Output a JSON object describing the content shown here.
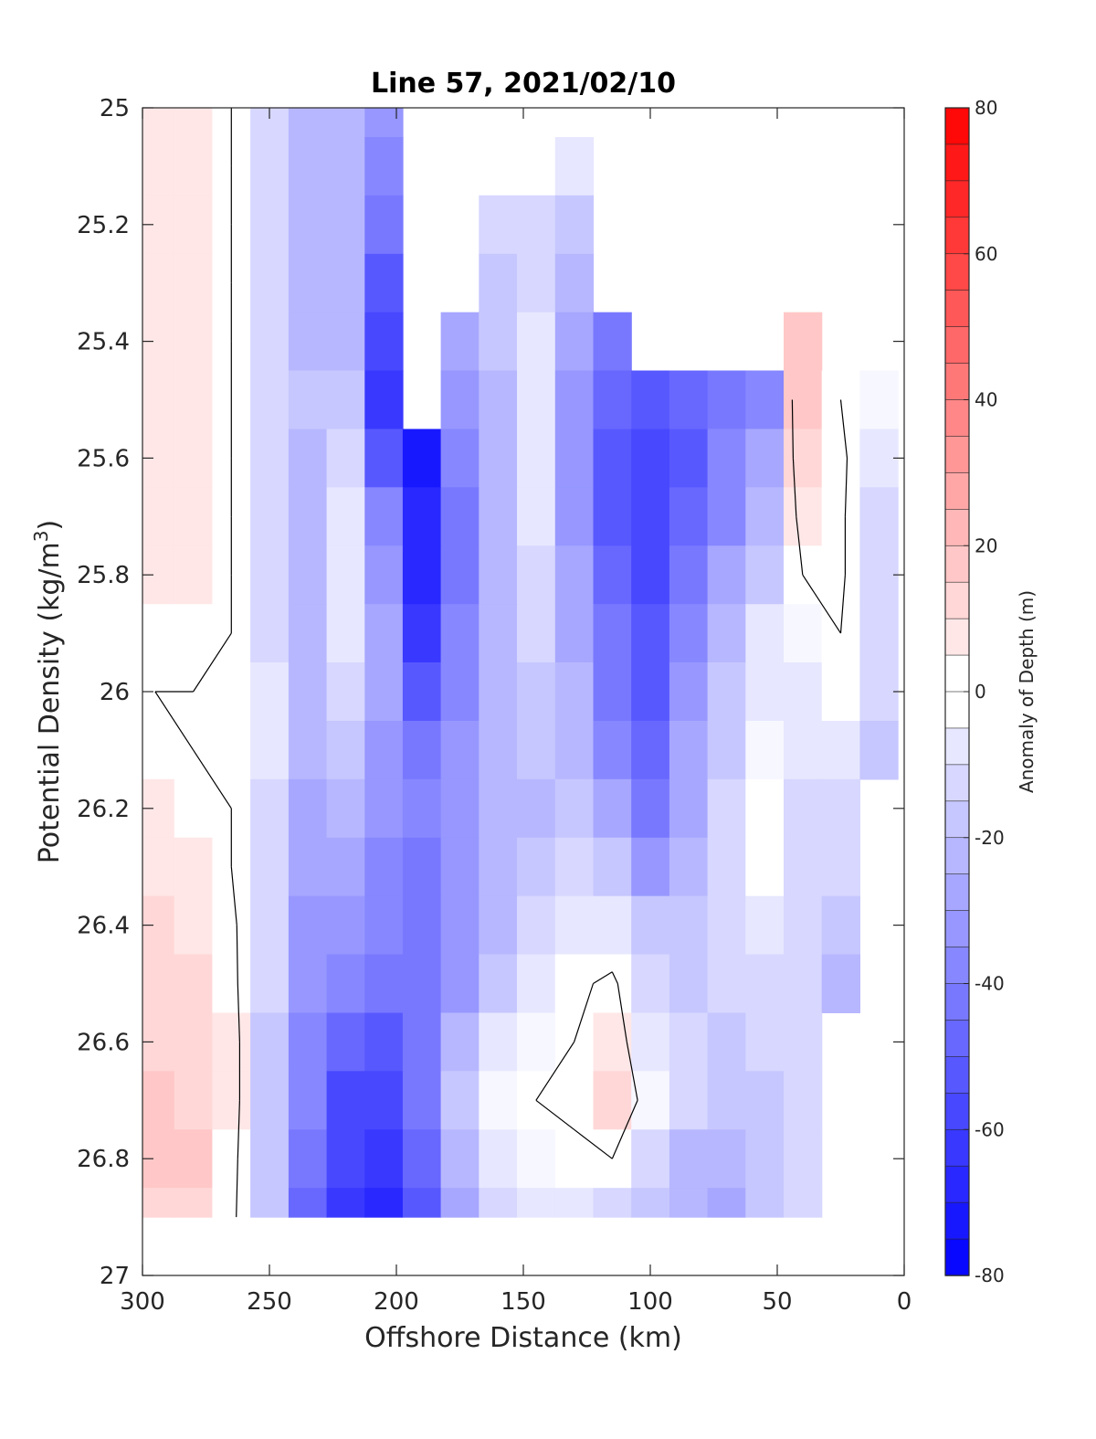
{
  "chart_data": {
    "type": "heatmap",
    "subtype": "filled-contour",
    "title": "Line 57, 2021/02/10",
    "xlabel": "Offshore Distance (km)",
    "ylabel_main": "Potential Density (kg/m",
    "ylabel_sup": "3",
    "ylabel_close": ")",
    "xlim": [
      300,
      0
    ],
    "x_reversed": true,
    "ylim": [
      25,
      27
    ],
    "y_reversed": true,
    "x_ticks": [
      "300",
      "250",
      "200",
      "150",
      "100",
      "50",
      "0"
    ],
    "x_tick_values": [
      300,
      250,
      200,
      150,
      100,
      50,
      0
    ],
    "y_ticks": [
      "25",
      "25.2",
      "25.4",
      "25.6",
      "25.8",
      "26",
      "26.2",
      "26.4",
      "26.6",
      "26.8",
      "27"
    ],
    "y_tick_values": [
      25,
      25.2,
      25.4,
      25.6,
      25.8,
      26,
      26.2,
      26.4,
      26.6,
      26.8,
      27
    ],
    "grid": false,
    "colorbar": {
      "label": "Anomaly of Depth (m)",
      "range": [
        -80,
        80
      ],
      "step": 5,
      "ticks": [
        "80",
        "60",
        "40",
        "20",
        "0",
        "-20",
        "-40",
        "-60",
        "-80"
      ],
      "tick_values": [
        80,
        60,
        40,
        20,
        0,
        -20,
        -40,
        -60,
        -80
      ],
      "colormap": "blue-white-red",
      "color_low": "#0000ff",
      "color_mid": "#ffffff",
      "color_high": "#ff0000"
    },
    "zero_contour": "black",
    "x": [
      295,
      280,
      265,
      250,
      235,
      220,
      205,
      190,
      175,
      160,
      145,
      130,
      115,
      100,
      85,
      70,
      55,
      40,
      25,
      10
    ],
    "y": [
      25.0,
      25.1,
      25.2,
      25.3,
      25.4,
      25.5,
      25.6,
      25.7,
      25.8,
      25.9,
      26.0,
      26.1,
      26.2,
      26.3,
      26.4,
      26.5,
      26.6,
      26.7,
      26.8,
      26.9
    ],
    "z": [
      [
        5,
        5,
        0,
        -15,
        -22,
        -25,
        -35,
        null,
        null,
        null,
        null,
        null,
        null,
        null,
        null,
        null,
        null,
        null,
        null,
        null
      ],
      [
        5,
        6,
        0,
        -15,
        -22,
        -25,
        -38,
        null,
        null,
        null,
        null,
        -10,
        null,
        null,
        null,
        null,
        null,
        null,
        null,
        null
      ],
      [
        5,
        6,
        0,
        -15,
        -22,
        -24,
        -45,
        null,
        null,
        -15,
        -12,
        -20,
        null,
        null,
        null,
        null,
        null,
        null,
        null,
        null
      ],
      [
        5,
        6,
        0,
        -15,
        -22,
        -24,
        -55,
        null,
        null,
        -18,
        -15,
        -25,
        null,
        null,
        null,
        null,
        null,
        null,
        null,
        null
      ],
      [
        5,
        6,
        0,
        -15,
        -22,
        -24,
        -60,
        null,
        -30,
        -20,
        -8,
        -30,
        -45,
        null,
        null,
        null,
        null,
        18,
        null,
        null
      ],
      [
        5,
        6,
        0,
        -15,
        -20,
        -18,
        -62,
        null,
        -35,
        -22,
        -6,
        -35,
        -50,
        -55,
        -50,
        -45,
        -40,
        15,
        0,
        -5
      ],
      [
        5,
        6,
        0,
        -15,
        -22,
        -12,
        -55,
        -72,
        -40,
        -22,
        -8,
        -35,
        -52,
        -60,
        -52,
        -40,
        -30,
        10,
        2,
        -10
      ],
      [
        5,
        6,
        0,
        -15,
        -22,
        -8,
        -40,
        -70,
        -45,
        -22,
        -10,
        -32,
        -52,
        -58,
        -50,
        -38,
        -25,
        5,
        2,
        -15
      ],
      [
        5,
        5,
        0,
        -12,
        -22,
        -8,
        -35,
        -68,
        -42,
        -22,
        -12,
        -30,
        -48,
        -56,
        -45,
        -30,
        -18,
        0,
        2,
        -15
      ],
      [
        3,
        2,
        0,
        -12,
        -22,
        -10,
        -30,
        -62,
        -40,
        -22,
        -15,
        -28,
        -45,
        -55,
        -40,
        -25,
        -10,
        -5,
        0,
        -15
      ],
      [
        0,
        0,
        0,
        -10,
        -22,
        -15,
        -30,
        -55,
        -38,
        -22,
        -18,
        -25,
        -42,
        -52,
        -35,
        -20,
        -10,
        -8,
        -2,
        -15
      ],
      [
        2,
        0,
        0,
        -10,
        -25,
        -20,
        -32,
        -45,
        -35,
        -22,
        -20,
        -22,
        -38,
        -50,
        -30,
        -18,
        -5,
        -10,
        -8,
        -18
      ],
      [
        5,
        2,
        0,
        -12,
        -28,
        -25,
        -35,
        -40,
        -35,
        -25,
        -22,
        -20,
        -30,
        -45,
        -28,
        -15,
        -3,
        -12,
        -12,
        null
      ],
      [
        8,
        5,
        0,
        -12,
        -30,
        -28,
        -38,
        -42,
        -35,
        -25,
        -20,
        -15,
        -20,
        -35,
        -25,
        -15,
        -3,
        -12,
        -15,
        null
      ],
      [
        10,
        8,
        2,
        -12,
        -35,
        -32,
        -40,
        -45,
        -35,
        -25,
        -15,
        -8,
        -8,
        -20,
        -20,
        -15,
        -10,
        -15,
        -20,
        null
      ],
      [
        12,
        10,
        3,
        -15,
        -35,
        -40,
        -45,
        -45,
        -32,
        -18,
        -10,
        -2,
        2,
        -12,
        -18,
        -15,
        -12,
        -15,
        -22,
        null
      ],
      [
        14,
        12,
        5,
        -18,
        -38,
        -50,
        -52,
        -45,
        -25,
        -10,
        -5,
        0,
        5,
        -8,
        -15,
        -18,
        -15,
        -12,
        null,
        null
      ],
      [
        16,
        14,
        5,
        -18,
        -40,
        -58,
        -58,
        -45,
        -20,
        -5,
        0,
        2,
        10,
        -5,
        -15,
        -20,
        -20,
        -15,
        null,
        null
      ],
      [
        18,
        16,
        4,
        -20,
        -45,
        -60,
        -62,
        -50,
        -25,
        -10,
        -5,
        -2,
        0,
        -15,
        -22,
        -25,
        -20,
        -15,
        null,
        null
      ],
      [
        14,
        12,
        3,
        -20,
        -50,
        -65,
        -70,
        -55,
        -30,
        -15,
        -10,
        -8,
        -12,
        -20,
        -25,
        -30,
        -20,
        -15,
        null,
        null
      ]
    ]
  }
}
